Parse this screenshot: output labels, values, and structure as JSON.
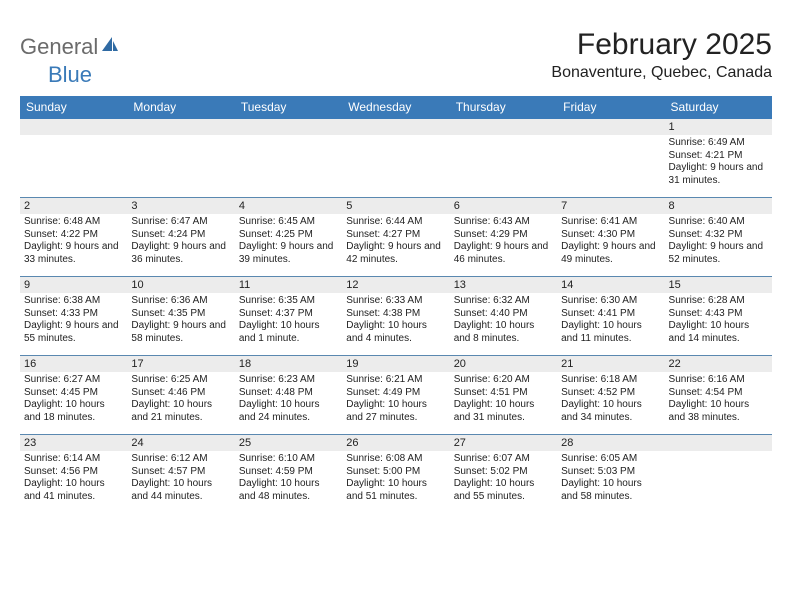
{
  "logo": {
    "part1": "General",
    "part2": "Blue"
  },
  "title": "February 2025",
  "location": "Bonaventure, Quebec, Canada",
  "weekdays": [
    "Sunday",
    "Monday",
    "Tuesday",
    "Wednesday",
    "Thursday",
    "Friday",
    "Saturday"
  ],
  "colors": {
    "header_bar": "#3a7ab8",
    "daynum_bg": "#ececec",
    "rule": "#5a88b0",
    "logo_gray": "#6b6b6b",
    "logo_blue": "#3a7ab8"
  },
  "weeks": [
    [
      {
        "n": "",
        "sunrise": "",
        "sunset": "",
        "daylight": ""
      },
      {
        "n": "",
        "sunrise": "",
        "sunset": "",
        "daylight": ""
      },
      {
        "n": "",
        "sunrise": "",
        "sunset": "",
        "daylight": ""
      },
      {
        "n": "",
        "sunrise": "",
        "sunset": "",
        "daylight": ""
      },
      {
        "n": "",
        "sunrise": "",
        "sunset": "",
        "daylight": ""
      },
      {
        "n": "",
        "sunrise": "",
        "sunset": "",
        "daylight": ""
      },
      {
        "n": "1",
        "sunrise": "Sunrise: 6:49 AM",
        "sunset": "Sunset: 4:21 PM",
        "daylight": "Daylight: 9 hours and 31 minutes."
      }
    ],
    [
      {
        "n": "2",
        "sunrise": "Sunrise: 6:48 AM",
        "sunset": "Sunset: 4:22 PM",
        "daylight": "Daylight: 9 hours and 33 minutes."
      },
      {
        "n": "3",
        "sunrise": "Sunrise: 6:47 AM",
        "sunset": "Sunset: 4:24 PM",
        "daylight": "Daylight: 9 hours and 36 minutes."
      },
      {
        "n": "4",
        "sunrise": "Sunrise: 6:45 AM",
        "sunset": "Sunset: 4:25 PM",
        "daylight": "Daylight: 9 hours and 39 minutes."
      },
      {
        "n": "5",
        "sunrise": "Sunrise: 6:44 AM",
        "sunset": "Sunset: 4:27 PM",
        "daylight": "Daylight: 9 hours and 42 minutes."
      },
      {
        "n": "6",
        "sunrise": "Sunrise: 6:43 AM",
        "sunset": "Sunset: 4:29 PM",
        "daylight": "Daylight: 9 hours and 46 minutes."
      },
      {
        "n": "7",
        "sunrise": "Sunrise: 6:41 AM",
        "sunset": "Sunset: 4:30 PM",
        "daylight": "Daylight: 9 hours and 49 minutes."
      },
      {
        "n": "8",
        "sunrise": "Sunrise: 6:40 AM",
        "sunset": "Sunset: 4:32 PM",
        "daylight": "Daylight: 9 hours and 52 minutes."
      }
    ],
    [
      {
        "n": "9",
        "sunrise": "Sunrise: 6:38 AM",
        "sunset": "Sunset: 4:33 PM",
        "daylight": "Daylight: 9 hours and 55 minutes."
      },
      {
        "n": "10",
        "sunrise": "Sunrise: 6:36 AM",
        "sunset": "Sunset: 4:35 PM",
        "daylight": "Daylight: 9 hours and 58 minutes."
      },
      {
        "n": "11",
        "sunrise": "Sunrise: 6:35 AM",
        "sunset": "Sunset: 4:37 PM",
        "daylight": "Daylight: 10 hours and 1 minute."
      },
      {
        "n": "12",
        "sunrise": "Sunrise: 6:33 AM",
        "sunset": "Sunset: 4:38 PM",
        "daylight": "Daylight: 10 hours and 4 minutes."
      },
      {
        "n": "13",
        "sunrise": "Sunrise: 6:32 AM",
        "sunset": "Sunset: 4:40 PM",
        "daylight": "Daylight: 10 hours and 8 minutes."
      },
      {
        "n": "14",
        "sunrise": "Sunrise: 6:30 AM",
        "sunset": "Sunset: 4:41 PM",
        "daylight": "Daylight: 10 hours and 11 minutes."
      },
      {
        "n": "15",
        "sunrise": "Sunrise: 6:28 AM",
        "sunset": "Sunset: 4:43 PM",
        "daylight": "Daylight: 10 hours and 14 minutes."
      }
    ],
    [
      {
        "n": "16",
        "sunrise": "Sunrise: 6:27 AM",
        "sunset": "Sunset: 4:45 PM",
        "daylight": "Daylight: 10 hours and 18 minutes."
      },
      {
        "n": "17",
        "sunrise": "Sunrise: 6:25 AM",
        "sunset": "Sunset: 4:46 PM",
        "daylight": "Daylight: 10 hours and 21 minutes."
      },
      {
        "n": "18",
        "sunrise": "Sunrise: 6:23 AM",
        "sunset": "Sunset: 4:48 PM",
        "daylight": "Daylight: 10 hours and 24 minutes."
      },
      {
        "n": "19",
        "sunrise": "Sunrise: 6:21 AM",
        "sunset": "Sunset: 4:49 PM",
        "daylight": "Daylight: 10 hours and 27 minutes."
      },
      {
        "n": "20",
        "sunrise": "Sunrise: 6:20 AM",
        "sunset": "Sunset: 4:51 PM",
        "daylight": "Daylight: 10 hours and 31 minutes."
      },
      {
        "n": "21",
        "sunrise": "Sunrise: 6:18 AM",
        "sunset": "Sunset: 4:52 PM",
        "daylight": "Daylight: 10 hours and 34 minutes."
      },
      {
        "n": "22",
        "sunrise": "Sunrise: 6:16 AM",
        "sunset": "Sunset: 4:54 PM",
        "daylight": "Daylight: 10 hours and 38 minutes."
      }
    ],
    [
      {
        "n": "23",
        "sunrise": "Sunrise: 6:14 AM",
        "sunset": "Sunset: 4:56 PM",
        "daylight": "Daylight: 10 hours and 41 minutes."
      },
      {
        "n": "24",
        "sunrise": "Sunrise: 6:12 AM",
        "sunset": "Sunset: 4:57 PM",
        "daylight": "Daylight: 10 hours and 44 minutes."
      },
      {
        "n": "25",
        "sunrise": "Sunrise: 6:10 AM",
        "sunset": "Sunset: 4:59 PM",
        "daylight": "Daylight: 10 hours and 48 minutes."
      },
      {
        "n": "26",
        "sunrise": "Sunrise: 6:08 AM",
        "sunset": "Sunset: 5:00 PM",
        "daylight": "Daylight: 10 hours and 51 minutes."
      },
      {
        "n": "27",
        "sunrise": "Sunrise: 6:07 AM",
        "sunset": "Sunset: 5:02 PM",
        "daylight": "Daylight: 10 hours and 55 minutes."
      },
      {
        "n": "28",
        "sunrise": "Sunrise: 6:05 AM",
        "sunset": "Sunset: 5:03 PM",
        "daylight": "Daylight: 10 hours and 58 minutes."
      },
      {
        "n": "",
        "sunrise": "",
        "sunset": "",
        "daylight": ""
      }
    ]
  ]
}
